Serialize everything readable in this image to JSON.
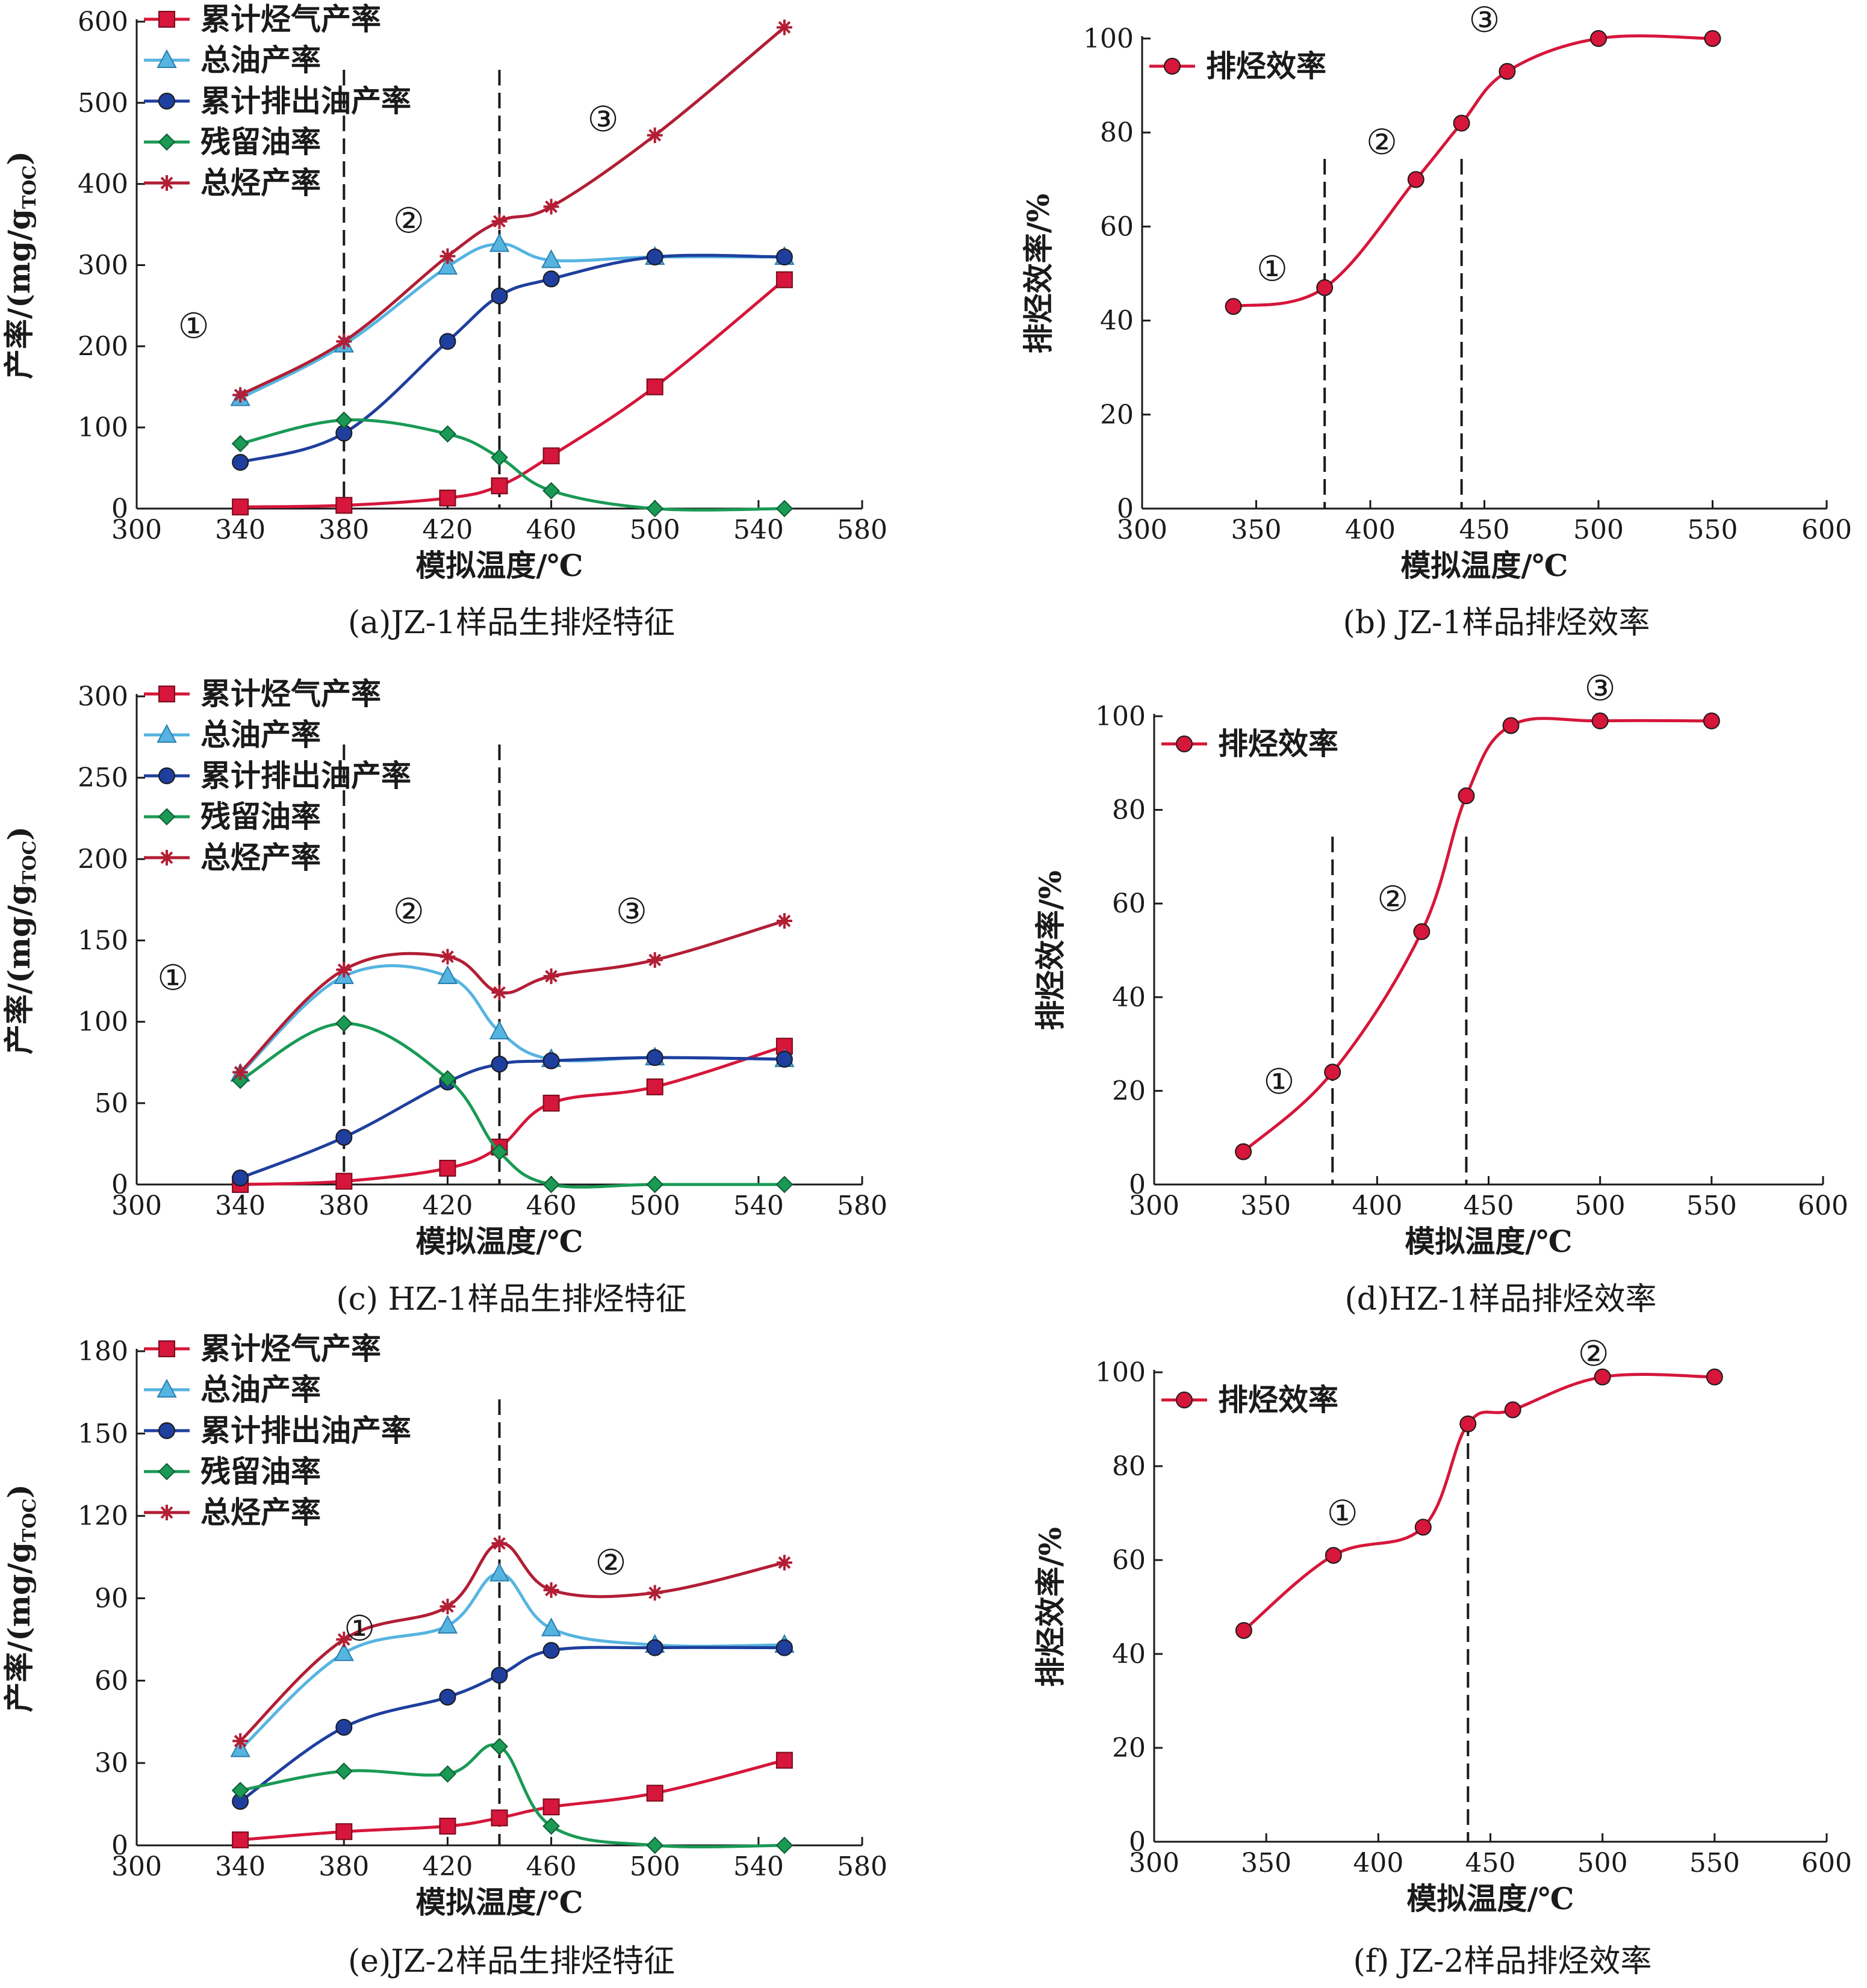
{
  "colors": {
    "gas": "#d6163a",
    "oil": "#56b4e0",
    "expelled": "#1f3f9e",
    "residual": "#1a9a55",
    "total": "#b21e35",
    "efficiency": "#d6163a"
  },
  "chart_data": [
    {
      "id": "a",
      "type": "line",
      "caption": "(a)JZ-1样品生排烃特征",
      "xlabel": "模拟温度/℃",
      "ylabel": "产率/(mg/gTOC)",
      "ylabel_main": "产率/(mg/g",
      "ylabel_sub": "TOC",
      "ylabel_close": ")",
      "xlim": [
        300,
        580
      ],
      "xticks": [
        300,
        340,
        380,
        420,
        460,
        500,
        540,
        580
      ],
      "ylim": [
        0,
        600
      ],
      "yticks": [
        0,
        100,
        200,
        300,
        400,
        500,
        600
      ],
      "grid": false,
      "legend_position": "top-left",
      "x": [
        340,
        380,
        420,
        440,
        460,
        500,
        550
      ],
      "series": [
        {
          "name": "累计烃气产率",
          "key": "gas",
          "marker": "square",
          "values": [
            2,
            4,
            13,
            28,
            65,
            150,
            282
          ]
        },
        {
          "name": "总油产率",
          "key": "oil",
          "marker": "triangle",
          "values": [
            136,
            202,
            298,
            326,
            306,
            310,
            310
          ]
        },
        {
          "name": "累计排出油产率",
          "key": "expelled",
          "marker": "circle",
          "values": [
            57,
            93,
            206,
            262,
            283,
            310,
            310
          ]
        },
        {
          "name": "残留油率",
          "key": "residual",
          "marker": "diamond",
          "values": [
            80,
            109,
            92,
            63,
            22,
            0,
            0
          ]
        },
        {
          "name": "总烃产率",
          "key": "total",
          "marker": "asterisk",
          "values": [
            140,
            206,
            311,
            354,
            372,
            460,
            593
          ]
        }
      ],
      "dividers": [
        380,
        440
      ],
      "annotations": [
        {
          "text": "①",
          "x": 322,
          "y": 225
        },
        {
          "text": "②",
          "x": 405,
          "y": 355
        },
        {
          "text": "③",
          "x": 480,
          "y": 480
        }
      ]
    },
    {
      "id": "b",
      "type": "line",
      "caption": "(b) JZ-1样品排烃效率",
      "xlabel": "模拟温度/℃",
      "ylabel": "排烃效率/%",
      "xlim": [
        300,
        600
      ],
      "xticks": [
        300,
        350,
        400,
        450,
        500,
        550,
        600
      ],
      "ylim": [
        0,
        100
      ],
      "yticks": [
        0,
        20,
        40,
        60,
        80,
        100
      ],
      "grid": false,
      "legend_position": "top-left",
      "x": [
        340,
        380,
        420,
        440,
        460,
        500,
        550
      ],
      "series": [
        {
          "name": "排烃效率",
          "key": "efficiency",
          "marker": "circle",
          "values": [
            43,
            47,
            70,
            82,
            93,
            100,
            100
          ]
        }
      ],
      "dividers": [
        380,
        440
      ],
      "annotations": [
        {
          "text": "①",
          "x": 357,
          "y": 51
        },
        {
          "text": "②",
          "x": 405,
          "y": 78
        },
        {
          "text": "③",
          "x": 450,
          "y": 104
        }
      ]
    },
    {
      "id": "c",
      "type": "line",
      "caption": "(c) HZ-1样品生排烃特征",
      "xlabel": "模拟温度/℃",
      "ylabel": "产率/(mg/gTOC)",
      "ylabel_main": "产率/(mg/g",
      "ylabel_sub": "TOC",
      "ylabel_close": ")",
      "xlim": [
        300,
        580
      ],
      "xticks": [
        300,
        340,
        380,
        420,
        460,
        500,
        540,
        580
      ],
      "ylim": [
        0,
        300
      ],
      "yticks": [
        0,
        50,
        100,
        150,
        200,
        250,
        300
      ],
      "grid": false,
      "legend_position": "top-left",
      "x": [
        340,
        380,
        420,
        440,
        460,
        500,
        550
      ],
      "series": [
        {
          "name": "累计烃气产率",
          "key": "gas",
          "marker": "square",
          "values": [
            0,
            2,
            10,
            23,
            50,
            60,
            85
          ]
        },
        {
          "name": "总油产率",
          "key": "oil",
          "marker": "triangle",
          "values": [
            68,
            128,
            128,
            94,
            77,
            78,
            77
          ]
        },
        {
          "name": "累计排出油产率",
          "key": "expelled",
          "marker": "circle",
          "values": [
            4,
            29,
            63,
            74,
            76,
            78,
            77
          ]
        },
        {
          "name": "残留油率",
          "key": "residual",
          "marker": "diamond",
          "values": [
            64,
            99,
            65,
            20,
            0,
            0,
            0
          ]
        },
        {
          "name": "总烃产率",
          "key": "total",
          "marker": "asterisk",
          "values": [
            69,
            132,
            140,
            118,
            128,
            138,
            162
          ]
        }
      ],
      "dividers": [
        380,
        440
      ],
      "annotations": [
        {
          "text": "①",
          "x": 314,
          "y": 127
        },
        {
          "text": "②",
          "x": 405,
          "y": 168
        },
        {
          "text": "③",
          "x": 491,
          "y": 168
        }
      ]
    },
    {
      "id": "d",
      "type": "line",
      "caption": "(d)HZ-1样品排烃效率",
      "xlabel": "模拟温度/℃",
      "ylabel": "排烃效率/%",
      "xlim": [
        300,
        600
      ],
      "xticks": [
        300,
        350,
        400,
        450,
        500,
        550,
        600
      ],
      "ylim": [
        0,
        100
      ],
      "yticks": [
        0,
        20,
        40,
        60,
        80,
        100
      ],
      "grid": false,
      "legend_position": "top-left",
      "x": [
        340,
        380,
        420,
        440,
        460,
        500,
        550
      ],
      "series": [
        {
          "name": "排烃效率",
          "key": "efficiency",
          "marker": "circle",
          "values": [
            7,
            24,
            54,
            83,
            98,
            99,
            99
          ]
        }
      ],
      "dividers": [
        380,
        440
      ],
      "annotations": [
        {
          "text": "①",
          "x": 356,
          "y": 22
        },
        {
          "text": "②",
          "x": 407,
          "y": 61
        },
        {
          "text": "③",
          "x": 500,
          "y": 106
        }
      ]
    },
    {
      "id": "e",
      "type": "line",
      "caption": "(e)JZ-2样品生排烃特征",
      "xlabel": "模拟温度/℃",
      "ylabel": "产率/(mg/gTOC)",
      "ylabel_main": "产率/(mg/g",
      "ylabel_sub": "TOC",
      "ylabel_close": ")",
      "xlim": [
        300,
        580
      ],
      "xticks": [
        300,
        340,
        380,
        420,
        460,
        500,
        540,
        580
      ],
      "ylim": [
        0,
        180
      ],
      "yticks": [
        0,
        30,
        60,
        90,
        120,
        150,
        180
      ],
      "grid": false,
      "legend_position": "top-left",
      "x": [
        340,
        380,
        420,
        440,
        460,
        500,
        550
      ],
      "series": [
        {
          "name": "累计烃气产率",
          "key": "gas",
          "marker": "square",
          "values": [
            2,
            5,
            7,
            10,
            14,
            19,
            31
          ]
        },
        {
          "name": "总油产率",
          "key": "oil",
          "marker": "triangle",
          "values": [
            35,
            70,
            80,
            99,
            79,
            73,
            73
          ]
        },
        {
          "name": "累计排出油产率",
          "key": "expelled",
          "marker": "circle",
          "values": [
            16,
            43,
            54,
            62,
            71,
            72,
            72
          ]
        },
        {
          "name": "残留油率",
          "key": "residual",
          "marker": "diamond",
          "values": [
            20,
            27,
            26,
            36,
            7,
            0,
            0
          ]
        },
        {
          "name": "总烃产率",
          "key": "total",
          "marker": "asterisk",
          "values": [
            38,
            75,
            87,
            110,
            93,
            92,
            103
          ]
        }
      ],
      "dividers": [
        440
      ],
      "annotations": [
        {
          "text": "①",
          "x": 386,
          "y": 79
        },
        {
          "text": "②",
          "x": 483,
          "y": 103
        }
      ]
    },
    {
      "id": "f",
      "type": "line",
      "caption": "(f) JZ-2样品排烃效率",
      "xlabel": "模拟温度/℃",
      "ylabel": "排烃效率/%",
      "xlim": [
        300,
        600
      ],
      "xticks": [
        300,
        350,
        400,
        450,
        500,
        550,
        600
      ],
      "ylim": [
        0,
        100
      ],
      "yticks": [
        0,
        20,
        40,
        60,
        80,
        100
      ],
      "grid": false,
      "legend_position": "top-left",
      "x": [
        340,
        380,
        420,
        440,
        460,
        500,
        550
      ],
      "series": [
        {
          "name": "排烃效率",
          "key": "efficiency",
          "marker": "circle",
          "values": [
            45,
            61,
            67,
            89,
            92,
            99,
            99
          ]
        }
      ],
      "dividers": [
        440
      ],
      "annotations": [
        {
          "text": "①",
          "x": 384,
          "y": 70
        },
        {
          "text": "②",
          "x": 496,
          "y": 104
        }
      ]
    }
  ]
}
